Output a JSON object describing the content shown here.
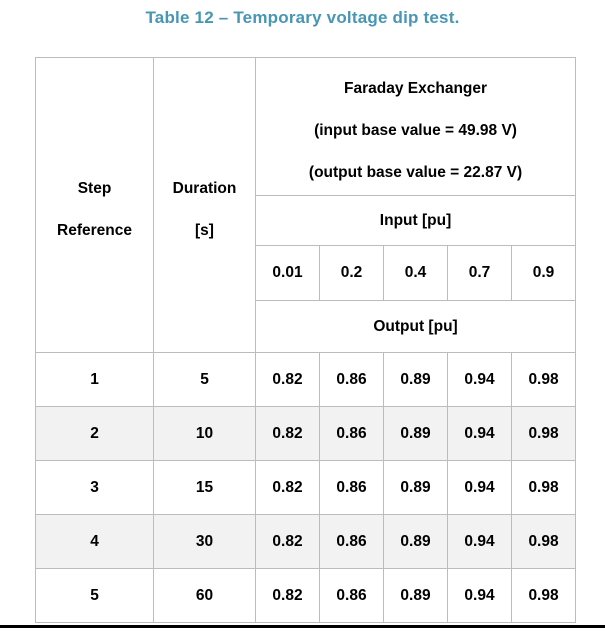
{
  "title": "Table 12 – Temporary voltage dip test.",
  "colors": {
    "caption_text": "#4796b5",
    "table_border": "#bcbcbc",
    "shaded_cell": "#f2f2f2",
    "bottom_rule": "#000000"
  },
  "table": {
    "step_header": {
      "line1": "Step",
      "line2": "Reference"
    },
    "duration_header": {
      "line1": "Duration",
      "line2": "[s]"
    },
    "device_header": {
      "line1": "Faraday Exchanger",
      "line2": "(input base value = 49.98 V)",
      "line3": "(output base value = 22.87 V)"
    },
    "input_label": "Input [pu]",
    "output_label": "Output [pu]",
    "input_levels": [
      "0.01",
      "0.2",
      "0.4",
      "0.7",
      "0.9"
    ],
    "rows": [
      {
        "step": "1",
        "duration": "5",
        "outputs": [
          "0.82",
          "0.86",
          "0.89",
          "0.94",
          "0.98"
        ]
      },
      {
        "step": "2",
        "duration": "10",
        "outputs": [
          "0.82",
          "0.86",
          "0.89",
          "0.94",
          "0.98"
        ]
      },
      {
        "step": "3",
        "duration": "15",
        "outputs": [
          "0.82",
          "0.86",
          "0.89",
          "0.94",
          "0.98"
        ]
      },
      {
        "step": "4",
        "duration": "30",
        "outputs": [
          "0.82",
          "0.86",
          "0.89",
          "0.94",
          "0.98"
        ]
      },
      {
        "step": "5",
        "duration": "60",
        "outputs": [
          "0.82",
          "0.86",
          "0.89",
          "0.94",
          "0.98"
        ]
      }
    ]
  }
}
